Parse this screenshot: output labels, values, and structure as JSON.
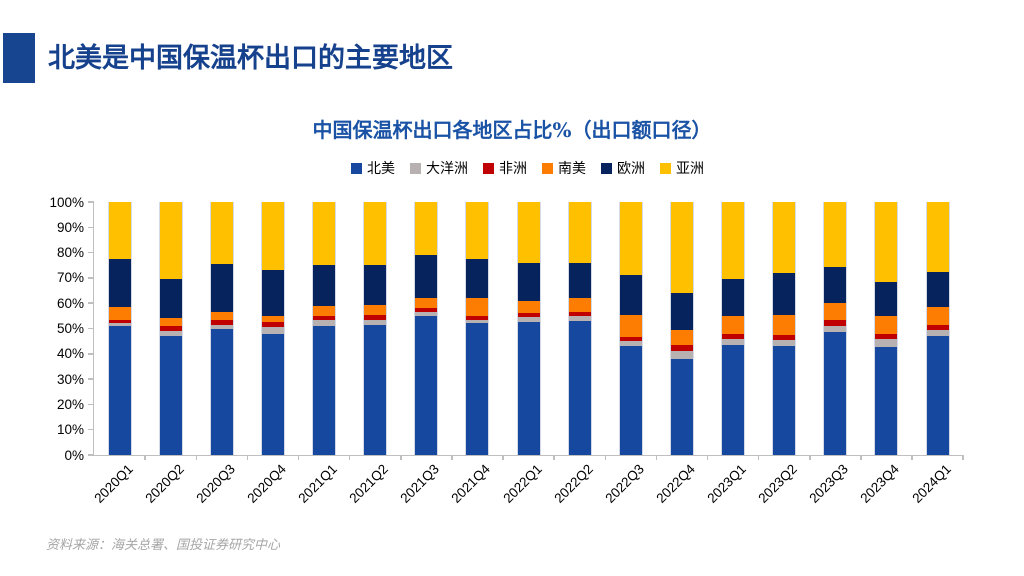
{
  "header": {
    "title": "北美是中国保温杯出口的主要地区"
  },
  "footer": {
    "source": "资料来源：海关总署、国投证券研究中心"
  },
  "accent_color": "#17458F",
  "chart_data": {
    "type": "bar",
    "stacked": true,
    "stacked_total": 100,
    "title": "中国保温杯出口各地区占比%（出口额口径）",
    "title_color": "#1A52A5",
    "legend_position": "top",
    "grid": false,
    "ylim": [
      0,
      100
    ],
    "y_ticks": [
      "0%",
      "10%",
      "20%",
      "30%",
      "40%",
      "50%",
      "60%",
      "70%",
      "80%",
      "90%",
      "100%"
    ],
    "categories": [
      "2020Q1",
      "2020Q2",
      "2020Q3",
      "2020Q4",
      "2021Q1",
      "2021Q2",
      "2021Q3",
      "2021Q4",
      "2022Q1",
      "2022Q2",
      "2022Q3",
      "2022Q4",
      "2023Q1",
      "2023Q2",
      "2023Q3",
      "2023Q4",
      "2024Q1"
    ],
    "series": [
      {
        "name": "北美",
        "color": "#15489E",
        "values": [
          51,
          47,
          50,
          48,
          51,
          51.5,
          55,
          52,
          52.5,
          53,
          43,
          38,
          43.5,
          43,
          48.5,
          42.5,
          47
        ]
      },
      {
        "name": "大洋洲",
        "color": "#B7B1B1",
        "values": [
          1,
          2,
          1.5,
          2.5,
          2.5,
          2,
          1.5,
          1.5,
          2,
          2,
          2,
          3,
          2.5,
          2.5,
          2.5,
          3.5,
          2.5
        ]
      },
      {
        "name": "非洲",
        "color": "#C00000",
        "values": [
          1.5,
          2,
          2,
          2,
          1.5,
          2,
          1.5,
          1.5,
          1.5,
          1.5,
          1.5,
          2.5,
          2,
          2,
          2.5,
          2,
          2
        ]
      },
      {
        "name": "南美",
        "color": "#FC7D02",
        "values": [
          5,
          3,
          3,
          2.5,
          4,
          4,
          4,
          7,
          5,
          5.5,
          9,
          6,
          7,
          8,
          6.5,
          7,
          7
        ]
      },
      {
        "name": "欧洲",
        "color": "#06235E",
        "values": [
          19,
          15.5,
          19,
          18,
          16,
          15.5,
          17,
          15.5,
          15,
          14,
          15.5,
          14.5,
          14.5,
          16.5,
          14.5,
          13.5,
          14
        ]
      },
      {
        "name": "亚洲",
        "color": "#FFC000",
        "values": [
          22.5,
          30.5,
          24.5,
          27,
          25,
          25,
          21,
          22.5,
          24,
          24,
          29,
          36,
          30.5,
          28,
          25.5,
          31.5,
          27.5
        ]
      }
    ]
  }
}
